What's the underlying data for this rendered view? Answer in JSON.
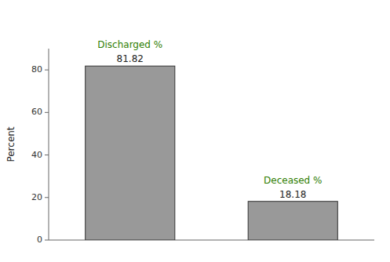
{
  "chart_data": {
    "type": "bar",
    "ylabel": "Percent",
    "categories": [
      "Discharged %",
      "Deceased %"
    ],
    "values": [
      81.82,
      18.18
    ],
    "color": "#999999",
    "ylim": [
      0,
      90
    ],
    "yticks": [
      0,
      20,
      40,
      60,
      80
    ],
    "data_labels": true
  }
}
